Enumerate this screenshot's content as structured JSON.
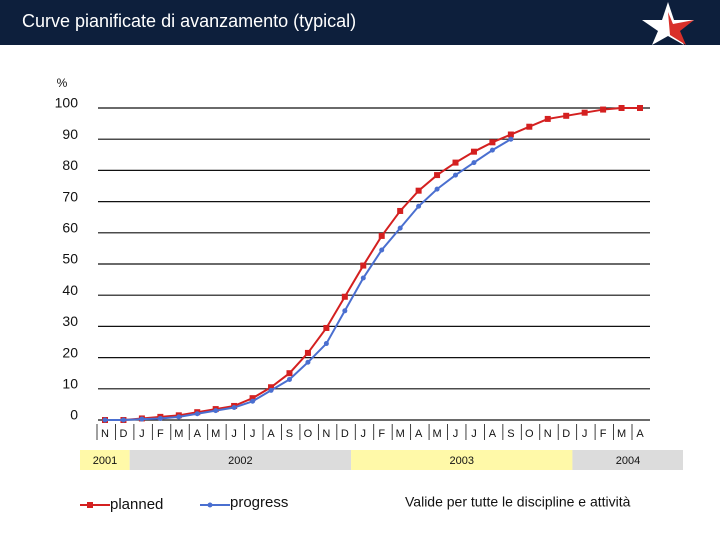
{
  "chart_data": {
    "type": "line",
    "title": "Curve pianificate di avanzamento (typical)",
    "y_label": "%",
    "categories": [
      "N",
      "D",
      "J",
      "F",
      "M",
      "A",
      "M",
      "J",
      "J",
      "A",
      "S",
      "O",
      "N",
      "D",
      "J",
      "F",
      "M",
      "A",
      "M",
      "J",
      "J",
      "A",
      "S",
      "O",
      "N",
      "D",
      "J",
      "F",
      "M",
      "A"
    ],
    "x_groups": [
      "2001",
      "2002",
      "2003",
      "2004"
    ],
    "series": [
      {
        "name": "planned",
        "color": "#d42020",
        "values": [
          0,
          0,
          0.5,
          1,
          1.5,
          2.5,
          3.5,
          4.5,
          7,
          10.5,
          15,
          21.5,
          29.5,
          39.5,
          49.5,
          59,
          67,
          73.5,
          78.5,
          82.5,
          86,
          89,
          91.5,
          94,
          96.5,
          97.5,
          98.5,
          99.5,
          100,
          100
        ]
      },
      {
        "name": "progress",
        "color": "#4a6fd0",
        "values": [
          0,
          0,
          0.3,
          0.5,
          1,
          2,
          3,
          4,
          6,
          9.5,
          13,
          18.5,
          24.5,
          35,
          45.5,
          54.5,
          61.5,
          68.5,
          74,
          78.5,
          82.5,
          86.5,
          90,
          null,
          null,
          null,
          null,
          null,
          null,
          null
        ]
      }
    ],
    "ylim": [
      0,
      100
    ],
    "yticks": [
      0,
      10,
      20,
      30,
      40,
      50,
      60,
      70,
      80,
      90,
      100
    ],
    "grid": true,
    "note": "Valide per tutte le discipline e attività"
  }
}
